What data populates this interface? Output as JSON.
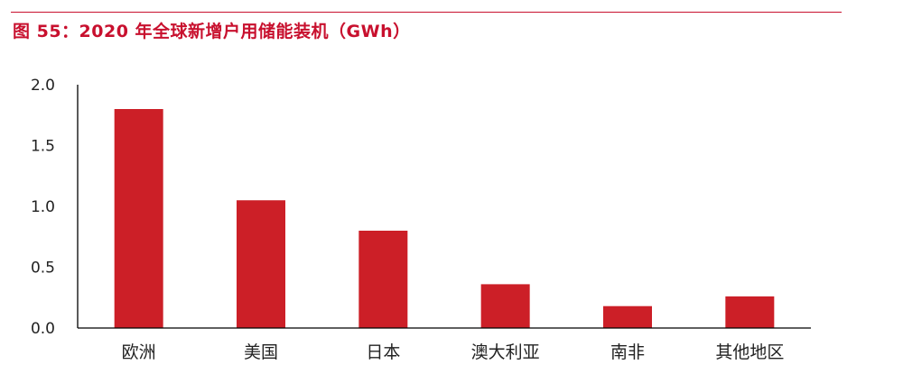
{
  "figure": {
    "title": "图 55：2020 年全球新增户用储能装机（GWh）"
  },
  "colors": {
    "accent": "#c8102e",
    "bar": "#cc1f27",
    "axis": "#000000",
    "text": "#222222"
  },
  "chart_data": {
    "type": "bar",
    "title": "图 55：2020 年全球新增户用储能装机（GWh）",
    "xlabel": "",
    "ylabel": "",
    "categories": [
      "欧洲",
      "美国",
      "日本",
      "澳大利亚",
      "南非",
      "其他地区"
    ],
    "values": [
      1.8,
      1.05,
      0.8,
      0.36,
      0.18,
      0.26
    ],
    "ylim": [
      0,
      2.0
    ],
    "yticks": [
      "0.0",
      "0.5",
      "1.0",
      "1.5",
      "2.0"
    ],
    "grid": false,
    "legend": "none"
  }
}
